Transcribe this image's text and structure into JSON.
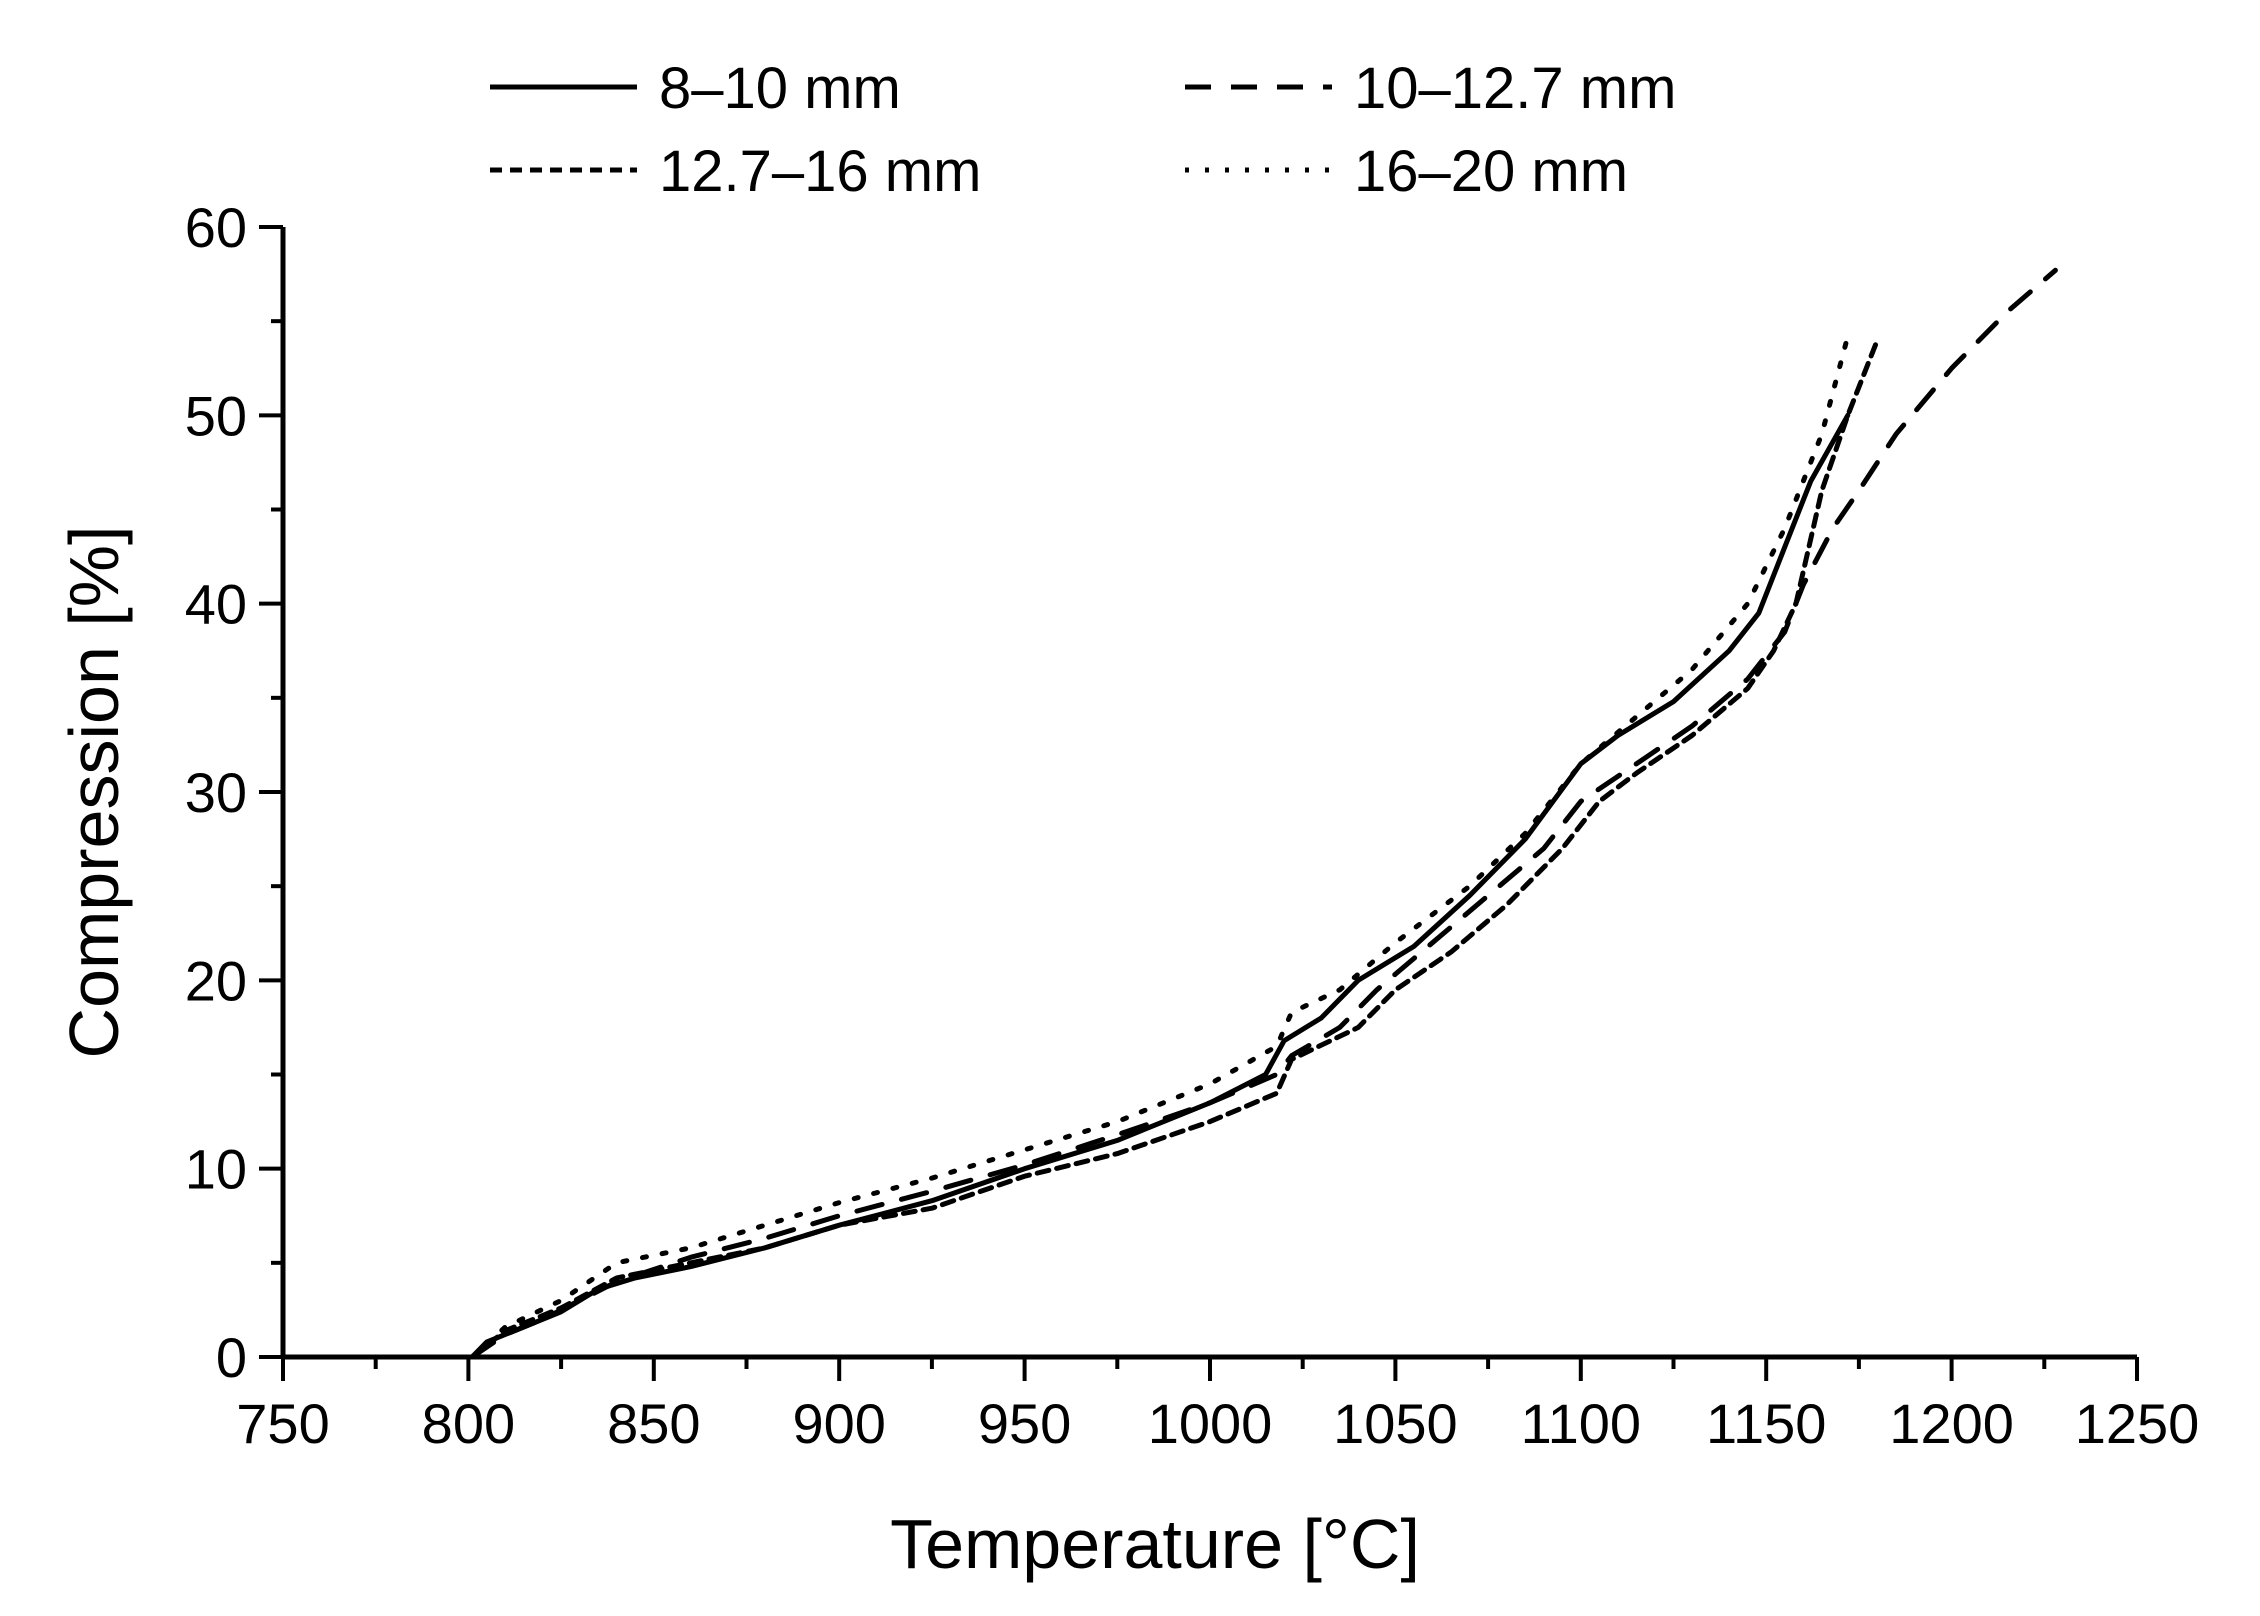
{
  "chart_data": {
    "type": "line",
    "title": "",
    "xlabel": "Temperature [°C]",
    "ylabel": "Compression [%]",
    "xlim": [
      750,
      1250
    ],
    "ylim": [
      0,
      60
    ],
    "xticks": [
      750,
      800,
      850,
      900,
      950,
      1000,
      1050,
      1100,
      1150,
      1200,
      1250
    ],
    "yticks": [
      0,
      10,
      20,
      30,
      40,
      50,
      60
    ],
    "grid": false,
    "legend_placement": "top",
    "colors": {
      "lines": "#000000"
    },
    "series": [
      {
        "name": "8–10 mm",
        "style": "solid",
        "x": [
          801,
          805,
          815,
          825,
          835,
          845,
          860,
          880,
          900,
          925,
          950,
          975,
          1000,
          1015,
          1020,
          1030,
          1040,
          1055,
          1070,
          1085,
          1100,
          1110,
          1125,
          1140,
          1148,
          1155,
          1162,
          1172
        ],
        "y": [
          0,
          0.8,
          1.6,
          2.4,
          3.6,
          4.2,
          4.8,
          5.8,
          7,
          8.3,
          10,
          11.5,
          13.5,
          15,
          16.8,
          18,
          20,
          21.8,
          24.5,
          27.5,
          31.5,
          33,
          34.8,
          37.5,
          39.5,
          43,
          46.5,
          50
        ]
      },
      {
        "name": "10–12.7 mm",
        "style": "dashed",
        "x": [
          801,
          810,
          820,
          840,
          860,
          880,
          900,
          925,
          950,
          975,
          1000,
          1018,
          1022,
          1035,
          1045,
          1060,
          1075,
          1090,
          1100,
          1115,
          1130,
          1145,
          1155,
          1160,
          1168,
          1175,
          1185,
          1200,
          1215,
          1228
        ],
        "y": [
          0,
          1.2,
          2,
          4,
          5.3,
          6.3,
          7.5,
          8.8,
          10.2,
          11.8,
          13.5,
          15,
          16,
          17.5,
          19.5,
          22,
          24.5,
          27,
          29.5,
          31.5,
          33.5,
          36,
          38.5,
          41,
          44,
          46,
          49,
          52.5,
          55.5,
          57.7
        ]
      },
      {
        "name": "12.7–16 mm",
        "style": "short-dashed",
        "x": [
          801,
          810,
          825,
          840,
          860,
          880,
          900,
          925,
          950,
          975,
          1000,
          1018,
          1022,
          1040,
          1050,
          1065,
          1080,
          1095,
          1105,
          1115,
          1130,
          1145,
          1152,
          1158,
          1165,
          1172,
          1180
        ],
        "y": [
          0,
          1.4,
          2.6,
          4.2,
          5,
          5.8,
          7,
          7.9,
          9.6,
          10.8,
          12.5,
          14,
          15.8,
          17.5,
          19.5,
          21.5,
          24,
          27,
          29.5,
          31,
          33,
          35.5,
          37.5,
          40,
          46,
          50,
          54
        ]
      },
      {
        "name": "16–20 mm",
        "style": "dotted",
        "x": [
          801,
          810,
          825,
          840,
          860,
          880,
          900,
          925,
          950,
          975,
          1000,
          1018,
          1022,
          1035,
          1050,
          1070,
          1085,
          1100,
          1115,
          1130,
          1145,
          1155,
          1165,
          1172
        ],
        "y": [
          0,
          1.6,
          3,
          5,
          5.8,
          7,
          8.2,
          9.5,
          11,
          12.5,
          14.5,
          16.5,
          18.3,
          19.5,
          22,
          25,
          27.8,
          31.5,
          34,
          36.5,
          40,
          44,
          49,
          54.2
        ]
      }
    ]
  }
}
